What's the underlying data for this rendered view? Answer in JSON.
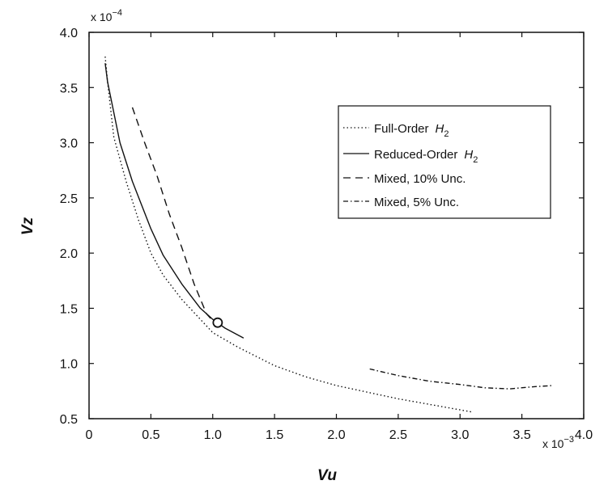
{
  "chart_data": {
    "type": "line",
    "title": "",
    "xlabel": "Vu",
    "ylabel": "Vz",
    "x_multiplier": {
      "base": "x 10",
      "exp": "−3"
    },
    "y_multiplier": {
      "base": "x 10",
      "exp": "−4"
    },
    "xlim": [
      0,
      4.0
    ],
    "ylim": [
      0.5,
      4.0
    ],
    "xticks": [
      "0",
      "0.5",
      "1.0",
      "1.5",
      "2.0",
      "2.5",
      "3.0",
      "3.5",
      "4.0"
    ],
    "yticks": [
      "0.5",
      "1.0",
      "1.5",
      "2.0",
      "2.5",
      "3.0",
      "3.5",
      "4.0"
    ],
    "grid": false,
    "legend_position": "upper-right",
    "series": [
      {
        "name": "Full-Order",
        "name_sub": "H",
        "name_subscript": "2",
        "style": "dotted",
        "points": [
          [
            0.13,
            3.78
          ],
          [
            0.15,
            3.55
          ],
          [
            0.2,
            3.05
          ],
          [
            0.3,
            2.65
          ],
          [
            0.4,
            2.3
          ],
          [
            0.5,
            2.0
          ],
          [
            0.6,
            1.8
          ],
          [
            0.75,
            1.58
          ],
          [
            0.9,
            1.4
          ],
          [
            1.0,
            1.28
          ],
          [
            1.2,
            1.15
          ],
          [
            1.5,
            0.98
          ],
          [
            1.75,
            0.88
          ],
          [
            2.0,
            0.8
          ],
          [
            2.5,
            0.68
          ],
          [
            2.8,
            0.62
          ],
          [
            3.1,
            0.56
          ]
        ]
      },
      {
        "name": "Reduced-Order",
        "name_sub": "H",
        "name_subscript": "2",
        "style": "solid",
        "points": [
          [
            0.13,
            3.72
          ],
          [
            0.15,
            3.55
          ],
          [
            0.25,
            3.0
          ],
          [
            0.35,
            2.65
          ],
          [
            0.5,
            2.22
          ],
          [
            0.6,
            1.98
          ],
          [
            0.75,
            1.72
          ],
          [
            0.9,
            1.5
          ],
          [
            1.0,
            1.4
          ],
          [
            1.1,
            1.32
          ],
          [
            1.25,
            1.23
          ]
        ]
      },
      {
        "name": "Mixed, 10% Unc.",
        "style": "dashed",
        "points": [
          [
            0.35,
            3.32
          ],
          [
            0.45,
            3.0
          ],
          [
            0.55,
            2.7
          ],
          [
            0.65,
            2.35
          ],
          [
            0.75,
            2.05
          ],
          [
            0.85,
            1.72
          ],
          [
            0.95,
            1.45
          ],
          [
            1.03,
            1.35
          ]
        ]
      },
      {
        "name": "Mixed, 5% Unc.",
        "style": "dashdot",
        "points": [
          [
            2.27,
            0.95
          ],
          [
            2.5,
            0.89
          ],
          [
            2.75,
            0.84
          ],
          [
            3.0,
            0.81
          ],
          [
            3.2,
            0.78
          ],
          [
            3.4,
            0.77
          ],
          [
            3.6,
            0.79
          ],
          [
            3.75,
            0.8
          ]
        ]
      }
    ],
    "markers": [
      {
        "shape": "circle",
        "x": 1.04,
        "y": 1.37
      }
    ]
  }
}
